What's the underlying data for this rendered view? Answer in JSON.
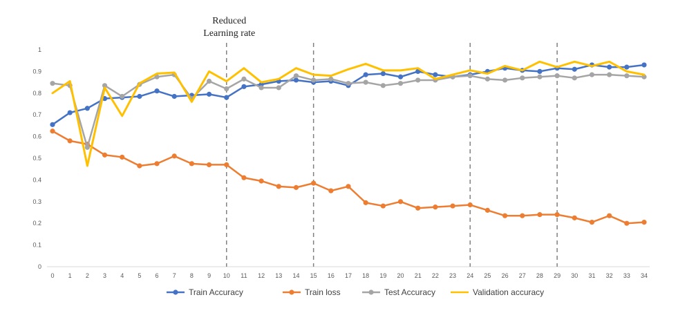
{
  "chart_data": {
    "type": "line",
    "title": "",
    "xlabel": "",
    "ylabel": "",
    "x": [
      0,
      1,
      2,
      3,
      4,
      5,
      6,
      7,
      8,
      9,
      10,
      11,
      12,
      13,
      14,
      15,
      16,
      17,
      18,
      19,
      20,
      21,
      22,
      23,
      24,
      25,
      26,
      27,
      28,
      29,
      30,
      31,
      32,
      33,
      34
    ],
    "ylim": [
      0,
      1
    ],
    "yticks": [
      "0",
      "0.1",
      "0.2",
      "0.3",
      "0.4",
      "0.5",
      "0.6",
      "0.7",
      "0.8",
      "0.9",
      "1"
    ],
    "grid": false,
    "legend_position": "bottom",
    "series": [
      {
        "name": "Train Accuracy",
        "color": "#4472C4",
        "marker": true,
        "values": [
          0.655,
          0.71,
          0.73,
          0.775,
          0.78,
          0.785,
          0.81,
          0.785,
          0.79,
          0.795,
          0.78,
          0.83,
          0.84,
          0.855,
          0.86,
          0.85,
          0.855,
          0.835,
          0.885,
          0.89,
          0.875,
          0.9,
          0.885,
          0.875,
          0.885,
          0.9,
          0.915,
          0.905,
          0.9,
          0.915,
          0.91,
          0.93,
          0.92,
          0.92,
          0.93
        ]
      },
      {
        "name": "Train loss",
        "color": "#ED7D31",
        "marker": true,
        "values": [
          0.625,
          0.58,
          0.565,
          0.515,
          0.505,
          0.465,
          0.475,
          0.51,
          0.475,
          0.47,
          0.47,
          0.41,
          0.395,
          0.37,
          0.365,
          0.385,
          0.35,
          0.37,
          0.295,
          0.28,
          0.3,
          0.27,
          0.275,
          0.28,
          0.285,
          0.26,
          0.235,
          0.235,
          0.24,
          0.24,
          0.225,
          0.205,
          0.235,
          0.2,
          0.205
        ]
      },
      {
        "name": "Test Accuracy",
        "color": "#A5A5A5",
        "marker": true,
        "values": [
          0.845,
          0.835,
          0.55,
          0.835,
          0.785,
          0.84,
          0.875,
          0.885,
          0.775,
          0.855,
          0.82,
          0.865,
          0.825,
          0.825,
          0.88,
          0.86,
          0.865,
          0.845,
          0.85,
          0.835,
          0.845,
          0.86,
          0.86,
          0.875,
          0.88,
          0.865,
          0.86,
          0.87,
          0.875,
          0.88,
          0.87,
          0.885,
          0.885,
          0.88,
          0.875
        ]
      },
      {
        "name": "Validation accuracy",
        "color": "#FFC000",
        "marker": false,
        "values": [
          0.8,
          0.855,
          0.465,
          0.825,
          0.695,
          0.845,
          0.89,
          0.895,
          0.76,
          0.9,
          0.855,
          0.915,
          0.85,
          0.865,
          0.915,
          0.885,
          0.88,
          0.91,
          0.935,
          0.905,
          0.905,
          0.915,
          0.865,
          0.885,
          0.905,
          0.89,
          0.925,
          0.905,
          0.945,
          0.92,
          0.945,
          0.925,
          0.945,
          0.9,
          0.885
        ]
      }
    ],
    "reference_lines": {
      "x": [
        10,
        15,
        24,
        29
      ],
      "style": "dashed",
      "color": "#808080"
    },
    "annotations": [
      {
        "text_lines": [
          "Reduced",
          "Learning rate"
        ],
        "at_x": 10
      }
    ]
  }
}
